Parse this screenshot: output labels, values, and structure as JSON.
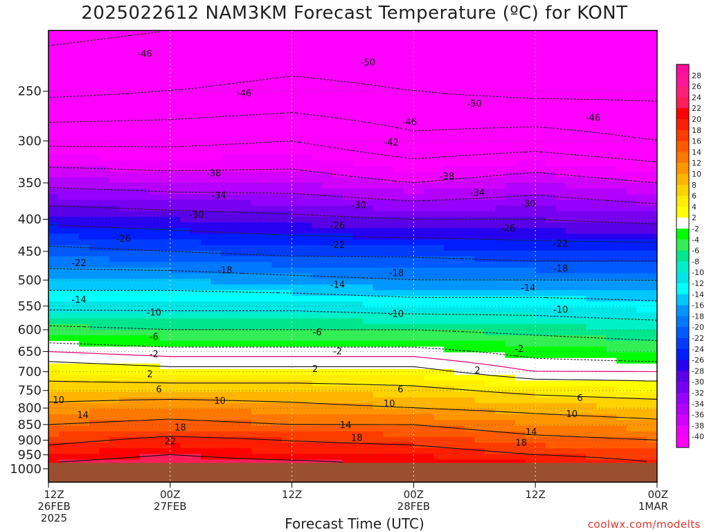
{
  "title": "2025022612 NAM3KM Forecast Temperature (ºC) for KONT",
  "xlabel": "Forecast Time (UTC)",
  "credit": "coolwx.com/modelts",
  "chart_data": {
    "type": "heatmap",
    "title": "2025022612 NAM3KM Forecast Temperature (ºC) for KONT",
    "xlabel": "Forecast Time (UTC)",
    "ylabel": "",
    "y_scale": "log",
    "y_reversed": true,
    "ylim": [
      1050,
      200
    ],
    "xlim": [
      0,
      60
    ],
    "x_unit": "forecast hours from 2025-02-26 12Z",
    "x_ticks": [
      {
        "x": 0,
        "lines": [
          "12Z",
          "26FEB",
          "2025"
        ]
      },
      {
        "x": 12,
        "lines": [
          "00Z",
          "27FEB"
        ]
      },
      {
        "x": 24,
        "lines": [
          "12Z"
        ]
      },
      {
        "x": 36,
        "lines": [
          "00Z",
          "28FEB"
        ]
      },
      {
        "x": 48,
        "lines": [
          "12Z"
        ]
      },
      {
        "x": 60,
        "lines": [
          "00Z",
          "1MAR"
        ]
      }
    ],
    "y_ticks": [
      250,
      300,
      350,
      400,
      450,
      500,
      550,
      600,
      650,
      700,
      750,
      800,
      850,
      900,
      950,
      1000
    ],
    "surface_pressure": 978,
    "grid": true,
    "colorbar": {
      "labels": [
        28,
        26,
        24,
        22,
        20,
        18,
        16,
        14,
        12,
        10,
        8,
        6,
        4,
        2,
        -2,
        -4,
        -6,
        -8,
        -10,
        -12,
        -14,
        -16,
        -18,
        -20,
        -22,
        -24,
        -26,
        -28,
        -30,
        -32,
        -34,
        -36,
        -38,
        -40
      ],
      "colors": [
        "#ff0ea0",
        "#ff1493",
        "#ff1e78",
        "#ff1e5a",
        "#ff0000",
        "#ff1e00",
        "#ff3c00",
        "#ff5a00",
        "#ff7800",
        "#ff9600",
        "#ffb400",
        "#ffd200",
        "#ffee00",
        "#ffff00",
        "#ffffff",
        "#00ff00",
        "#33ee55",
        "#00e68c",
        "#00f0c8",
        "#00e6e6",
        "#00ffff",
        "#00c8ff",
        "#0096ff",
        "#0078ff",
        "#005aff",
        "#003cff",
        "#001eff",
        "#2800f0",
        "#5a00e6",
        "#7800f0",
        "#9600ff",
        "#b400ff",
        "#d200ff",
        "#f000ff",
        "#ff00ff"
      ]
    },
    "profiles": [
      {
        "x": 0,
        "levels": [
          [
            978,
            22
          ],
          [
            950,
            20
          ],
          [
            900,
            17
          ],
          [
            850,
            14
          ],
          [
            800,
            11
          ],
          [
            750,
            8
          ],
          [
            700,
            4
          ],
          [
            650,
            0
          ],
          [
            600,
            -5
          ],
          [
            550,
            -11
          ],
          [
            500,
            -16
          ],
          [
            450,
            -21
          ],
          [
            400,
            -27
          ],
          [
            350,
            -35
          ],
          [
            300,
            -43
          ],
          [
            250,
            -51
          ],
          [
            200,
            -55
          ]
        ]
      },
      {
        "x": 12,
        "levels": [
          [
            978,
            24
          ],
          [
            950,
            22
          ],
          [
            900,
            19
          ],
          [
            850,
            15
          ],
          [
            800,
            12
          ],
          [
            750,
            8
          ],
          [
            700,
            3
          ],
          [
            650,
            -1
          ],
          [
            600,
            -6
          ],
          [
            550,
            -11
          ],
          [
            500,
            -16
          ],
          [
            450,
            -22
          ],
          [
            400,
            -28
          ],
          [
            350,
            -36
          ],
          [
            300,
            -43
          ],
          [
            250,
            -50
          ],
          [
            200,
            -54
          ]
        ]
      },
      {
        "x": 24,
        "levels": [
          [
            978,
            23
          ],
          [
            950,
            20
          ],
          [
            900,
            18
          ],
          [
            850,
            14
          ],
          [
            800,
            11
          ],
          [
            750,
            8
          ],
          [
            700,
            3
          ],
          [
            650,
            -1
          ],
          [
            600,
            -6
          ],
          [
            550,
            -11
          ],
          [
            500,
            -17
          ],
          [
            450,
            -23
          ],
          [
            400,
            -29
          ],
          [
            350,
            -36
          ],
          [
            300,
            -42
          ],
          [
            250,
            -49
          ],
          [
            200,
            -53
          ]
        ]
      },
      {
        "x": 36,
        "levels": [
          [
            978,
            21
          ],
          [
            950,
            20
          ],
          [
            900,
            17
          ],
          [
            850,
            14
          ],
          [
            800,
            10
          ],
          [
            750,
            7
          ],
          [
            700,
            3
          ],
          [
            650,
            -1
          ],
          [
            600,
            -6
          ],
          [
            550,
            -12
          ],
          [
            500,
            -18
          ],
          [
            450,
            -23
          ],
          [
            400,
            -30
          ],
          [
            350,
            -38
          ],
          [
            300,
            -45
          ],
          [
            250,
            -50
          ],
          [
            200,
            -53
          ]
        ]
      },
      {
        "x": 48,
        "levels": [
          [
            978,
            20
          ],
          [
            950,
            18
          ],
          [
            900,
            15
          ],
          [
            850,
            12
          ],
          [
            800,
            9
          ],
          [
            750,
            5
          ],
          [
            700,
            0
          ],
          [
            650,
            -3
          ],
          [
            600,
            -7
          ],
          [
            550,
            -12
          ],
          [
            500,
            -18
          ],
          [
            450,
            -24
          ],
          [
            400,
            -30
          ],
          [
            350,
            -36
          ],
          [
            300,
            -44
          ],
          [
            250,
            -51
          ],
          [
            200,
            -54
          ]
        ]
      },
      {
        "x": 60,
        "levels": [
          [
            978,
            18
          ],
          [
            950,
            17
          ],
          [
            900,
            14
          ],
          [
            850,
            11
          ],
          [
            800,
            8
          ],
          [
            750,
            4
          ],
          [
            700,
            0
          ],
          [
            650,
            -4
          ],
          [
            600,
            -8
          ],
          [
            550,
            -13
          ],
          [
            500,
            -18
          ],
          [
            450,
            -24
          ],
          [
            400,
            -31
          ],
          [
            350,
            -38
          ],
          [
            300,
            -46
          ],
          [
            250,
            -51
          ],
          [
            200,
            -53
          ]
        ]
      }
    ],
    "contour_labels": [
      {
        "value": -46,
        "x": 9.5,
        "p": 218
      },
      {
        "value": -46,
        "x": 19.3,
        "p": 252
      },
      {
        "value": -50,
        "x": 31.5,
        "p": 225
      },
      {
        "value": -50,
        "x": 42,
        "p": 262
      },
      {
        "value": -46,
        "x": 35.6,
        "p": 280
      },
      {
        "value": -46,
        "x": 53.7,
        "p": 276
      },
      {
        "value": -42,
        "x": 33.8,
        "p": 302
      },
      {
        "value": -38,
        "x": 16.3,
        "p": 338
      },
      {
        "value": -38,
        "x": 39.3,
        "p": 342
      },
      {
        "value": -34,
        "x": 16.8,
        "p": 367
      },
      {
        "value": -34,
        "x": 42.3,
        "p": 363
      },
      {
        "value": -30,
        "x": 14.6,
        "p": 394
      },
      {
        "value": -30,
        "x": 30.6,
        "p": 380
      },
      {
        "value": -30,
        "x": 47.3,
        "p": 378
      },
      {
        "value": -26,
        "x": 7.4,
        "p": 430
      },
      {
        "value": -26,
        "x": 28.5,
        "p": 410
      },
      {
        "value": -26,
        "x": 45.3,
        "p": 414
      },
      {
        "value": -22,
        "x": 3,
        "p": 470
      },
      {
        "value": -22,
        "x": 28.5,
        "p": 440
      },
      {
        "value": -22,
        "x": 50.5,
        "p": 438
      },
      {
        "value": -18,
        "x": 17.4,
        "p": 483
      },
      {
        "value": -18,
        "x": 34.3,
        "p": 488
      },
      {
        "value": -18,
        "x": 50.5,
        "p": 480
      },
      {
        "value": -14,
        "x": 3,
        "p": 538
      },
      {
        "value": -14,
        "x": 28.5,
        "p": 509
      },
      {
        "value": -14,
        "x": 47.3,
        "p": 515
      },
      {
        "value": -10,
        "x": 10.4,
        "p": 564
      },
      {
        "value": -10,
        "x": 34.3,
        "p": 567
      },
      {
        "value": -10,
        "x": 50.5,
        "p": 558
      },
      {
        "value": -6,
        "x": 10.4,
        "p": 616
      },
      {
        "value": -6,
        "x": 26.5,
        "p": 606
      },
      {
        "value": -2,
        "x": 10.4,
        "p": 657
      },
      {
        "value": -2,
        "x": 28.5,
        "p": 650
      },
      {
        "value": -2,
        "x": 46.4,
        "p": 644
      },
      {
        "value": 2,
        "x": 10,
        "p": 707
      },
      {
        "value": 2,
        "x": 26.3,
        "p": 694
      },
      {
        "value": 2,
        "x": 42.3,
        "p": 697
      },
      {
        "value": 6,
        "x": 10.9,
        "p": 748
      },
      {
        "value": 6,
        "x": 34.7,
        "p": 748
      },
      {
        "value": 6,
        "x": 52.4,
        "p": 772
      },
      {
        "value": 10,
        "x": 1,
        "p": 778
      },
      {
        "value": 10,
        "x": 16.9,
        "p": 780
      },
      {
        "value": 10,
        "x": 33.6,
        "p": 788
      },
      {
        "value": 10,
        "x": 51.6,
        "p": 818
      },
      {
        "value": 14,
        "x": 3.4,
        "p": 822
      },
      {
        "value": 14,
        "x": 29.3,
        "p": 852
      },
      {
        "value": 14,
        "x": 47.6,
        "p": 874
      },
      {
        "value": 18,
        "x": 13,
        "p": 860
      },
      {
        "value": 18,
        "x": 30.4,
        "p": 893
      },
      {
        "value": 18,
        "x": 46.6,
        "p": 909
      },
      {
        "value": 22,
        "x": 12,
        "p": 905
      }
    ]
  }
}
